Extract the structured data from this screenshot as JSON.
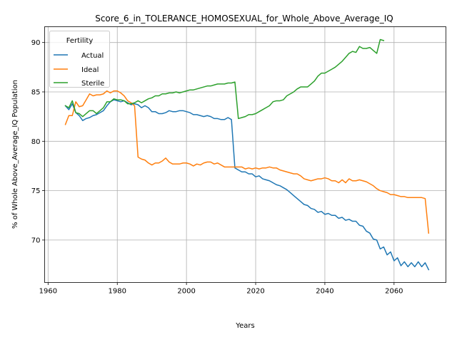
{
  "chart_data": {
    "type": "line",
    "title": "Score_6_in_TOLERANCE_HOMOSEXUAL_for_Whole_Above_Average_IQ",
    "xlabel": "Years",
    "ylabel": "% of Whole Above_Average_IQ Population",
    "xlim": [
      1959,
      2075
    ],
    "ylim": [
      65.7,
      91.6
    ],
    "xticks": [
      1960,
      1980,
      2000,
      2020,
      2040,
      2060
    ],
    "yticks": [
      70,
      75,
      80,
      85,
      90
    ],
    "grid": true,
    "legend": {
      "title": "Fertility",
      "placement": "upper-left"
    },
    "series": [
      {
        "name": "Actual",
        "color": "#1f77b4",
        "points": [
          [
            1965,
            83.6
          ],
          [
            1966,
            83.2
          ],
          [
            1967,
            83.8
          ],
          [
            1968,
            82.9
          ],
          [
            1969,
            82.6
          ],
          [
            1970,
            82.1
          ],
          [
            1971,
            82.3
          ],
          [
            1972,
            82.4
          ],
          [
            1973,
            82.6
          ],
          [
            1974,
            82.7
          ],
          [
            1975,
            82.9
          ],
          [
            1976,
            83.1
          ],
          [
            1977,
            83.6
          ],
          [
            1978,
            84.0
          ],
          [
            1979,
            84.2
          ],
          [
            1980,
            84.1
          ],
          [
            1981,
            84.0
          ],
          [
            1982,
            84.1
          ],
          [
            1983,
            83.9
          ],
          [
            1984,
            83.7
          ],
          [
            1985,
            83.8
          ],
          [
            1986,
            83.7
          ],
          [
            1987,
            83.4
          ],
          [
            1988,
            83.6
          ],
          [
            1989,
            83.4
          ],
          [
            1990,
            83.0
          ],
          [
            1991,
            83.0
          ],
          [
            1992,
            82.8
          ],
          [
            1993,
            82.8
          ],
          [
            1994,
            82.9
          ],
          [
            1995,
            83.1
          ],
          [
            1996,
            83.0
          ],
          [
            1997,
            83.0
          ],
          [
            1998,
            83.1
          ],
          [
            1999,
            83.1
          ],
          [
            2000,
            83.0
          ],
          [
            2001,
            82.9
          ],
          [
            2002,
            82.7
          ],
          [
            2003,
            82.7
          ],
          [
            2004,
            82.6
          ],
          [
            2005,
            82.5
          ],
          [
            2006,
            82.6
          ],
          [
            2007,
            82.5
          ],
          [
            2008,
            82.3
          ],
          [
            2009,
            82.3
          ],
          [
            2010,
            82.2
          ],
          [
            2011,
            82.2
          ],
          [
            2012,
            82.4
          ],
          [
            2013,
            82.2
          ],
          [
            2014,
            77.3
          ],
          [
            2015,
            77.1
          ],
          [
            2016,
            76.9
          ],
          [
            2017,
            76.9
          ],
          [
            2018,
            76.7
          ],
          [
            2019,
            76.7
          ],
          [
            2020,
            76.4
          ],
          [
            2021,
            76.5
          ],
          [
            2022,
            76.2
          ],
          [
            2023,
            76.1
          ],
          [
            2024,
            76.0
          ],
          [
            2025,
            75.8
          ],
          [
            2026,
            75.6
          ],
          [
            2027,
            75.5
          ],
          [
            2028,
            75.3
          ],
          [
            2029,
            75.1
          ],
          [
            2030,
            74.8
          ],
          [
            2031,
            74.5
          ],
          [
            2032,
            74.2
          ],
          [
            2033,
            73.9
          ],
          [
            2034,
            73.6
          ],
          [
            2035,
            73.5
          ],
          [
            2036,
            73.2
          ],
          [
            2037,
            73.1
          ],
          [
            2038,
            72.8
          ],
          [
            2039,
            72.9
          ],
          [
            2040,
            72.6
          ],
          [
            2041,
            72.7
          ],
          [
            2042,
            72.5
          ],
          [
            2043,
            72.5
          ],
          [
            2044,
            72.2
          ],
          [
            2045,
            72.3
          ],
          [
            2046,
            72.0
          ],
          [
            2047,
            72.1
          ],
          [
            2048,
            71.9
          ],
          [
            2049,
            71.9
          ],
          [
            2050,
            71.5
          ],
          [
            2051,
            71.4
          ],
          [
            2052,
            70.9
          ],
          [
            2053,
            70.7
          ],
          [
            2054,
            70.1
          ],
          [
            2055,
            70.0
          ],
          [
            2056,
            69.1
          ],
          [
            2057,
            69.3
          ],
          [
            2058,
            68.5
          ],
          [
            2059,
            68.8
          ],
          [
            2060,
            67.9
          ],
          [
            2061,
            68.2
          ],
          [
            2062,
            67.4
          ],
          [
            2063,
            67.8
          ],
          [
            2064,
            67.3
          ],
          [
            2065,
            67.7
          ],
          [
            2066,
            67.3
          ],
          [
            2067,
            67.8
          ],
          [
            2068,
            67.3
          ],
          [
            2069,
            67.7
          ],
          [
            2070,
            67.0
          ]
        ]
      },
      {
        "name": "Ideal",
        "color": "#ff7f0e",
        "points": [
          [
            1965,
            81.7
          ],
          [
            1966,
            82.6
          ],
          [
            1967,
            82.6
          ],
          [
            1968,
            84.0
          ],
          [
            1969,
            83.5
          ],
          [
            1970,
            83.6
          ],
          [
            1971,
            84.2
          ],
          [
            1972,
            84.8
          ],
          [
            1973,
            84.6
          ],
          [
            1974,
            84.7
          ],
          [
            1975,
            84.7
          ],
          [
            1976,
            84.8
          ],
          [
            1977,
            85.1
          ],
          [
            1978,
            84.9
          ],
          [
            1979,
            85.1
          ],
          [
            1980,
            85.1
          ],
          [
            1981,
            84.9
          ],
          [
            1982,
            84.6
          ],
          [
            1983,
            84.1
          ],
          [
            1984,
            83.9
          ],
          [
            1985,
            83.6
          ],
          [
            1986,
            78.4
          ],
          [
            1987,
            78.2
          ],
          [
            1988,
            78.1
          ],
          [
            1989,
            77.8
          ],
          [
            1990,
            77.6
          ],
          [
            1991,
            77.8
          ],
          [
            1992,
            77.8
          ],
          [
            1993,
            78.0
          ],
          [
            1994,
            78.3
          ],
          [
            1995,
            77.9
          ],
          [
            1996,
            77.7
          ],
          [
            1997,
            77.7
          ],
          [
            1998,
            77.7
          ],
          [
            1999,
            77.8
          ],
          [
            2000,
            77.8
          ],
          [
            2001,
            77.7
          ],
          [
            2002,
            77.5
          ],
          [
            2003,
            77.7
          ],
          [
            2004,
            77.6
          ],
          [
            2005,
            77.8
          ],
          [
            2006,
            77.9
          ],
          [
            2007,
            77.9
          ],
          [
            2008,
            77.7
          ],
          [
            2009,
            77.8
          ],
          [
            2010,
            77.6
          ],
          [
            2011,
            77.4
          ],
          [
            2012,
            77.4
          ],
          [
            2013,
            77.4
          ],
          [
            2014,
            77.4
          ],
          [
            2015,
            77.4
          ],
          [
            2016,
            77.4
          ],
          [
            2017,
            77.2
          ],
          [
            2018,
            77.3
          ],
          [
            2019,
            77.2
          ],
          [
            2020,
            77.3
          ],
          [
            2021,
            77.2
          ],
          [
            2022,
            77.3
          ],
          [
            2023,
            77.3
          ],
          [
            2024,
            77.4
          ],
          [
            2025,
            77.3
          ],
          [
            2026,
            77.3
          ],
          [
            2027,
            77.1
          ],
          [
            2028,
            77.0
          ],
          [
            2029,
            76.9
          ],
          [
            2030,
            76.8
          ],
          [
            2031,
            76.7
          ],
          [
            2032,
            76.7
          ],
          [
            2033,
            76.5
          ],
          [
            2034,
            76.2
          ],
          [
            2035,
            76.1
          ],
          [
            2036,
            76.0
          ],
          [
            2037,
            76.1
          ],
          [
            2038,
            76.2
          ],
          [
            2039,
            76.2
          ],
          [
            2040,
            76.3
          ],
          [
            2041,
            76.2
          ],
          [
            2042,
            76.0
          ],
          [
            2043,
            76.0
          ],
          [
            2044,
            75.8
          ],
          [
            2045,
            76.1
          ],
          [
            2046,
            75.8
          ],
          [
            2047,
            76.2
          ],
          [
            2048,
            76.0
          ],
          [
            2049,
            76.0
          ],
          [
            2050,
            76.1
          ],
          [
            2051,
            76.0
          ],
          [
            2052,
            75.9
          ],
          [
            2053,
            75.7
          ],
          [
            2054,
            75.5
          ],
          [
            2055,
            75.2
          ],
          [
            2056,
            75.0
          ],
          [
            2057,
            74.9
          ],
          [
            2058,
            74.8
          ],
          [
            2059,
            74.6
          ],
          [
            2060,
            74.6
          ],
          [
            2061,
            74.5
          ],
          [
            2062,
            74.4
          ],
          [
            2063,
            74.4
          ],
          [
            2064,
            74.3
          ],
          [
            2065,
            74.3
          ],
          [
            2066,
            74.3
          ],
          [
            2067,
            74.3
          ],
          [
            2068,
            74.3
          ],
          [
            2069,
            74.2
          ],
          [
            2070,
            70.7
          ]
        ]
      },
      {
        "name": "Sterile",
        "color": "#2ca02c",
        "points": [
          [
            1965,
            83.6
          ],
          [
            1966,
            83.4
          ],
          [
            1967,
            84.1
          ],
          [
            1968,
            82.9
          ],
          [
            1969,
            82.8
          ],
          [
            1970,
            82.5
          ],
          [
            1971,
            82.8
          ],
          [
            1972,
            83.1
          ],
          [
            1973,
            83.1
          ],
          [
            1974,
            82.8
          ],
          [
            1975,
            83.1
          ],
          [
            1976,
            83.4
          ],
          [
            1977,
            84.0
          ],
          [
            1978,
            84.0
          ],
          [
            1979,
            84.3
          ],
          [
            1980,
            84.2
          ],
          [
            1981,
            84.2
          ],
          [
            1982,
            84.1
          ],
          [
            1983,
            83.8
          ],
          [
            1984,
            83.8
          ],
          [
            1985,
            83.9
          ],
          [
            1986,
            84.1
          ],
          [
            1987,
            83.9
          ],
          [
            1988,
            84.1
          ],
          [
            1989,
            84.3
          ],
          [
            1990,
            84.4
          ],
          [
            1991,
            84.6
          ],
          [
            1992,
            84.6
          ],
          [
            1993,
            84.8
          ],
          [
            1994,
            84.8
          ],
          [
            1995,
            84.9
          ],
          [
            1996,
            84.9
          ],
          [
            1997,
            85.0
          ],
          [
            1998,
            84.9
          ],
          [
            1999,
            85.0
          ],
          [
            2000,
            85.1
          ],
          [
            2001,
            85.2
          ],
          [
            2002,
            85.2
          ],
          [
            2003,
            85.3
          ],
          [
            2004,
            85.4
          ],
          [
            2005,
            85.5
          ],
          [
            2006,
            85.6
          ],
          [
            2007,
            85.6
          ],
          [
            2008,
            85.7
          ],
          [
            2009,
            85.8
          ],
          [
            2010,
            85.8
          ],
          [
            2011,
            85.8
          ],
          [
            2012,
            85.9
          ],
          [
            2013,
            85.9
          ],
          [
            2014,
            86.0
          ],
          [
            2015,
            82.3
          ],
          [
            2016,
            82.4
          ],
          [
            2017,
            82.5
          ],
          [
            2018,
            82.7
          ],
          [
            2019,
            82.7
          ],
          [
            2020,
            82.8
          ],
          [
            2021,
            83.0
          ],
          [
            2022,
            83.2
          ],
          [
            2023,
            83.4
          ],
          [
            2024,
            83.6
          ],
          [
            2025,
            84.0
          ],
          [
            2026,
            84.1
          ],
          [
            2027,
            84.1
          ],
          [
            2028,
            84.2
          ],
          [
            2029,
            84.6
          ],
          [
            2030,
            84.8
          ],
          [
            2031,
            85.0
          ],
          [
            2032,
            85.3
          ],
          [
            2033,
            85.5
          ],
          [
            2034,
            85.5
          ],
          [
            2035,
            85.5
          ],
          [
            2036,
            85.8
          ],
          [
            2037,
            86.1
          ],
          [
            2038,
            86.6
          ],
          [
            2039,
            86.9
          ],
          [
            2040,
            86.9
          ],
          [
            2041,
            87.1
          ],
          [
            2042,
            87.3
          ],
          [
            2043,
            87.5
          ],
          [
            2044,
            87.8
          ],
          [
            2045,
            88.1
          ],
          [
            2046,
            88.5
          ],
          [
            2047,
            88.9
          ],
          [
            2048,
            89.1
          ],
          [
            2049,
            89.0
          ],
          [
            2050,
            89.6
          ],
          [
            2051,
            89.4
          ],
          [
            2052,
            89.4
          ],
          [
            2053,
            89.5
          ],
          [
            2054,
            89.2
          ],
          [
            2055,
            88.9
          ],
          [
            2056,
            90.3
          ],
          [
            2057,
            90.2
          ]
        ]
      }
    ]
  }
}
